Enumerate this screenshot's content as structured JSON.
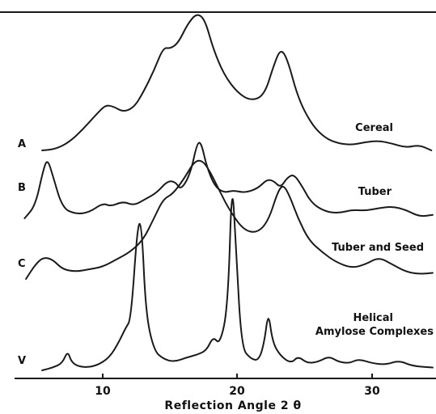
{
  "chart_data": {
    "type": "line",
    "title": "",
    "xlabel": "Reflection Angle 2 θ",
    "ylabel": "",
    "xlim": [
      4,
      35
    ],
    "x_ticks": [
      10,
      20,
      30
    ],
    "grid": false,
    "y_scale": "offset intensity (arbitrary units)",
    "series": [
      {
        "id": "A",
        "letter": "A",
        "name": "Cereal",
        "points": [
          [
            5.5,
            0.0
          ],
          [
            6.5,
            0.01
          ],
          [
            7.5,
            0.06
          ],
          [
            8.5,
            0.15
          ],
          [
            9.5,
            0.26
          ],
          [
            10.2,
            0.33
          ],
          [
            10.8,
            0.32
          ],
          [
            11.5,
            0.28
          ],
          [
            12.3,
            0.31
          ],
          [
            13.0,
            0.42
          ],
          [
            13.8,
            0.58
          ],
          [
            14.5,
            0.75
          ],
          [
            15.0,
            0.74
          ],
          [
            15.6,
            0.78
          ],
          [
            16.3,
            0.92
          ],
          [
            17.0,
            1.0
          ],
          [
            17.6,
            0.95
          ],
          [
            18.2,
            0.74
          ],
          [
            19.0,
            0.55
          ],
          [
            20.0,
            0.42
          ],
          [
            21.0,
            0.36
          ],
          [
            22.0,
            0.4
          ],
          [
            22.7,
            0.62
          ],
          [
            23.2,
            0.74
          ],
          [
            23.7,
            0.67
          ],
          [
            24.5,
            0.38
          ],
          [
            25.5,
            0.19
          ],
          [
            26.5,
            0.09
          ],
          [
            27.5,
            0.05
          ],
          [
            28.5,
            0.04
          ],
          [
            29.5,
            0.06
          ],
          [
            30.5,
            0.07
          ],
          [
            31.5,
            0.05
          ],
          [
            32.5,
            0.02
          ],
          [
            33.5,
            0.04
          ],
          [
            34.4,
            0.0
          ]
        ]
      },
      {
        "id": "B",
        "letter": "B",
        "name": "Tuber",
        "points": [
          [
            4.2,
            0.0
          ],
          [
            5.0,
            0.15
          ],
          [
            5.6,
            0.58
          ],
          [
            5.9,
            0.7
          ],
          [
            6.3,
            0.5
          ],
          [
            7.0,
            0.12
          ],
          [
            8.0,
            0.05
          ],
          [
            9.0,
            0.07
          ],
          [
            10.0,
            0.18
          ],
          [
            10.6,
            0.14
          ],
          [
            11.5,
            0.2
          ],
          [
            12.3,
            0.15
          ],
          [
            13.2,
            0.23
          ],
          [
            14.0,
            0.3
          ],
          [
            14.8,
            0.44
          ],
          [
            15.4,
            0.43
          ],
          [
            15.8,
            0.33
          ],
          [
            16.5,
            0.52
          ],
          [
            17.0,
            0.88
          ],
          [
            17.3,
            0.9
          ],
          [
            17.7,
            0.62
          ],
          [
            18.3,
            0.38
          ],
          [
            19.0,
            0.3
          ],
          [
            19.7,
            0.33
          ],
          [
            20.5,
            0.3
          ],
          [
            21.5,
            0.35
          ],
          [
            22.2,
            0.46
          ],
          [
            22.7,
            0.44
          ],
          [
            23.2,
            0.36
          ],
          [
            23.7,
            0.48
          ],
          [
            24.2,
            0.52
          ],
          [
            24.8,
            0.38
          ],
          [
            25.5,
            0.18
          ],
          [
            26.5,
            0.08
          ],
          [
            27.5,
            0.06
          ],
          [
            28.5,
            0.1
          ],
          [
            29.5,
            0.09
          ],
          [
            30.5,
            0.12
          ],
          [
            31.5,
            0.14
          ],
          [
            32.5,
            0.1
          ],
          [
            33.5,
            0.02
          ],
          [
            34.5,
            0.04
          ]
        ]
      },
      {
        "id": "C",
        "letter": "C",
        "name": "Tuber and Seed",
        "points": [
          [
            4.3,
            0.0
          ],
          [
            5.0,
            0.12
          ],
          [
            5.6,
            0.18
          ],
          [
            6.3,
            0.16
          ],
          [
            7.0,
            0.08
          ],
          [
            8.0,
            0.06
          ],
          [
            9.0,
            0.08
          ],
          [
            10.0,
            0.1
          ],
          [
            11.0,
            0.16
          ],
          [
            12.0,
            0.22
          ],
          [
            13.0,
            0.32
          ],
          [
            13.8,
            0.5
          ],
          [
            14.5,
            0.66
          ],
          [
            15.2,
            0.7
          ],
          [
            16.0,
            0.82
          ],
          [
            16.8,
            0.97
          ],
          [
            17.4,
            0.98
          ],
          [
            18.0,
            0.88
          ],
          [
            18.7,
            0.72
          ],
          [
            19.5,
            0.55
          ],
          [
            20.5,
            0.4
          ],
          [
            21.5,
            0.38
          ],
          [
            22.3,
            0.48
          ],
          [
            23.0,
            0.72
          ],
          [
            23.4,
            0.78
          ],
          [
            23.9,
            0.68
          ],
          [
            24.5,
            0.5
          ],
          [
            25.3,
            0.32
          ],
          [
            26.3,
            0.22
          ],
          [
            27.3,
            0.14
          ],
          [
            28.5,
            0.09
          ],
          [
            29.5,
            0.12
          ],
          [
            30.5,
            0.18
          ],
          [
            31.5,
            0.12
          ],
          [
            32.5,
            0.06
          ],
          [
            33.5,
            0.04
          ],
          [
            34.5,
            0.05
          ]
        ]
      },
      {
        "id": "V",
        "letter": "V",
        "name": "Helical Amylose Complexes",
        "points": [
          [
            5.5,
            0.0
          ],
          [
            6.3,
            0.02
          ],
          [
            7.0,
            0.05
          ],
          [
            7.4,
            0.14
          ],
          [
            7.7,
            0.05
          ],
          [
            8.5,
            0.02
          ],
          [
            9.5,
            0.03
          ],
          [
            10.5,
            0.09
          ],
          [
            11.2,
            0.2
          ],
          [
            11.7,
            0.3
          ],
          [
            12.1,
            0.36
          ],
          [
            12.6,
            1.05
          ],
          [
            12.9,
            1.02
          ],
          [
            13.2,
            0.4
          ],
          [
            13.8,
            0.14
          ],
          [
            14.5,
            0.08
          ],
          [
            15.3,
            0.06
          ],
          [
            16.2,
            0.09
          ],
          [
            17.0,
            0.11
          ],
          [
            17.7,
            0.14
          ],
          [
            18.2,
            0.24
          ],
          [
            18.7,
            0.18
          ],
          [
            19.3,
            0.45
          ],
          [
            19.6,
            1.38
          ],
          [
            19.9,
            0.85
          ],
          [
            20.3,
            0.16
          ],
          [
            21.0,
            0.08
          ],
          [
            21.6,
            0.07
          ],
          [
            22.0,
            0.2
          ],
          [
            22.3,
            0.42
          ],
          [
            22.6,
            0.2
          ],
          [
            23.2,
            0.1
          ],
          [
            24.0,
            0.05
          ],
          [
            24.5,
            0.1
          ],
          [
            25.2,
            0.05
          ],
          [
            26.0,
            0.06
          ],
          [
            26.8,
            0.1
          ],
          [
            27.5,
            0.06
          ],
          [
            28.3,
            0.05
          ],
          [
            29.0,
            0.08
          ],
          [
            30.0,
            0.05
          ],
          [
            31.0,
            0.04
          ],
          [
            32.0,
            0.07
          ],
          [
            33.0,
            0.03
          ],
          [
            34.5,
            0.02
          ]
        ]
      }
    ]
  }
}
